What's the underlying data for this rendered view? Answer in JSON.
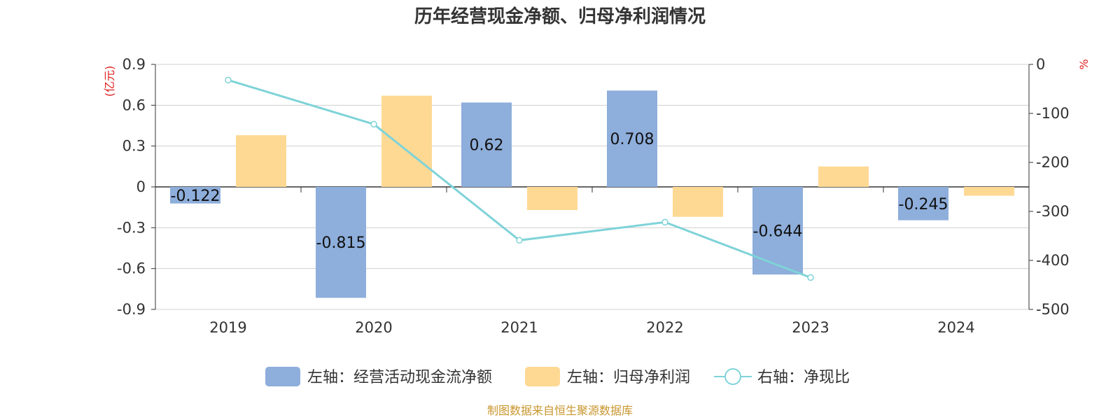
{
  "chart_data": {
    "type": "bar",
    "title": "历年经营现金净额、归母净利润情况",
    "categories": [
      "2019",
      "2020",
      "2021",
      "2022",
      "2023",
      "2024"
    ],
    "left_axis": {
      "unit": "(亿元)",
      "ticks": [
        "0.9",
        "0.6",
        "0.3",
        "0",
        "-0.3",
        "-0.6",
        "-0.9"
      ],
      "ylim": [
        -0.9,
        0.9
      ]
    },
    "right_axis": {
      "unit": "%",
      "ticks": [
        "0",
        "-100",
        "-200",
        "-300",
        "-400",
        "-500"
      ],
      "ylim": [
        -500,
        0
      ]
    },
    "series": [
      {
        "name": "左轴：经营活动现金流净额",
        "type": "bar",
        "axis": "left",
        "color": "#8eaedb",
        "values": [
          -0.122,
          -0.815,
          0.62,
          0.708,
          -0.644,
          -0.245
        ],
        "labels": [
          "-0.122",
          "-0.815",
          "0.62",
          "0.708",
          "-0.644",
          "-0.245"
        ]
      },
      {
        "name": "左轴：归母净利润",
        "type": "bar",
        "axis": "left",
        "color": "#fed994",
        "values": [
          0.38,
          0.67,
          -0.17,
          -0.22,
          0.15,
          -0.065
        ]
      },
      {
        "name": "右轴：净现比",
        "type": "line",
        "axis": "right",
        "color": "#7fd3d8",
        "values": [
          -32,
          -122,
          -359,
          -322,
          -435,
          null
        ]
      }
    ],
    "grid": true,
    "legend_position": "bottom"
  },
  "source": "制图数据来自恒生聚源数据库"
}
